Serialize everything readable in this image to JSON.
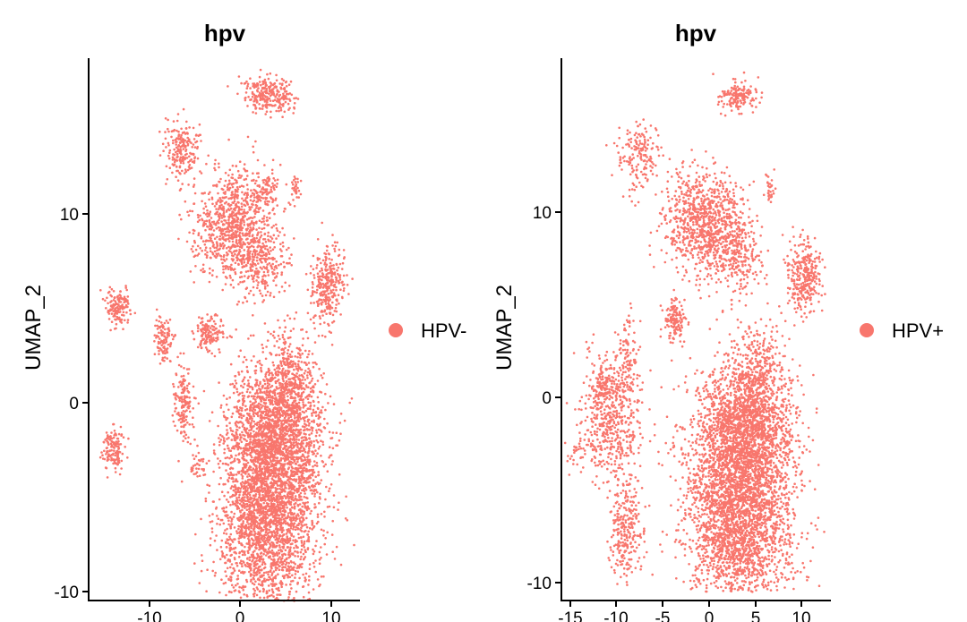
{
  "chart_data": [
    {
      "type": "scatter",
      "title": "hpv",
      "xlabel": "",
      "ylabel": "UMAP_2",
      "xlim": [
        -16.5,
        13
      ],
      "ylim": [
        -10.5,
        18
      ],
      "x_ticks": [
        "-10",
        "0",
        "10"
      ],
      "y_ticks": [
        "-10",
        "0",
        "10"
      ],
      "legend": {
        "placement": "right",
        "entries": [
          "HPV-"
        ]
      },
      "grid": false,
      "series": [
        {
          "name": "HPV-",
          "color": "#F8766D",
          "clusters": [
            {
              "x": 3,
              "y": -6,
              "sx": 2.7,
              "sy": 2.6,
              "n": 2600
            },
            {
              "x": 4,
              "y": -1.6,
              "sx": 2.6,
              "sy": 1.9,
              "n": 1800
            },
            {
              "x": 5.3,
              "y": 1.5,
              "sx": 1.3,
              "sy": 1.3,
              "n": 260
            },
            {
              "x": -0.5,
              "y": 9.5,
              "sx": 2.2,
              "sy": 1.5,
              "n": 900
            },
            {
              "x": 2.5,
              "y": 7.5,
              "sx": 1.4,
              "sy": 1.1,
              "n": 230
            },
            {
              "x": 3.2,
              "y": 16.3,
              "sx": 1.4,
              "sy": 0.5,
              "n": 260
            },
            {
              "x": 9.7,
              "y": 6.2,
              "sx": 0.9,
              "sy": 1.0,
              "n": 300
            },
            {
              "x": -6.5,
              "y": 13.5,
              "sx": 1.0,
              "sy": 0.7,
              "n": 200
            },
            {
              "x": -13.5,
              "y": 5.1,
              "sx": 0.7,
              "sy": 0.5,
              "n": 140
            },
            {
              "x": -8.4,
              "y": 3.4,
              "sx": 0.5,
              "sy": 0.6,
              "n": 110
            },
            {
              "x": -3.4,
              "y": 3.7,
              "sx": 0.7,
              "sy": 0.5,
              "n": 140
            },
            {
              "x": -6.2,
              "y": 0,
              "sx": 0.5,
              "sy": 1.1,
              "n": 160
            },
            {
              "x": -14,
              "y": -2.5,
              "sx": 0.6,
              "sy": 0.6,
              "n": 130
            },
            {
              "x": 3.1,
              "y": 11.3,
              "sx": 0.4,
              "sy": 0.4,
              "n": 50
            },
            {
              "x": 6.1,
              "y": 11.3,
              "sx": 0.3,
              "sy": 0.4,
              "n": 30
            },
            {
              "x": -4.7,
              "y": -3.4,
              "sx": 0.4,
              "sy": 0.3,
              "n": 30
            }
          ]
        }
      ]
    },
    {
      "type": "scatter",
      "title": "hpv",
      "xlabel": "",
      "ylabel": "UMAP_2",
      "xlim": [
        -16.5,
        13
      ],
      "ylim": [
        -10.5,
        18
      ],
      "x_ticks": [
        "-15",
        "-10",
        "-5",
        "0",
        "5",
        "10"
      ],
      "y_ticks": [
        "-10",
        "0",
        "10"
      ],
      "legend": {
        "placement": "right",
        "entries": [
          "HPV+"
        ]
      },
      "grid": false,
      "series": [
        {
          "name": "HPV+",
          "color": "#F8766D",
          "clusters": [
            {
              "x": 3.2,
              "y": -6.3,
              "sx": 2.8,
              "sy": 2.5,
              "n": 2800
            },
            {
              "x": 4,
              "y": -1.6,
              "sx": 2.6,
              "sy": 1.9,
              "n": 1800
            },
            {
              "x": 5.3,
              "y": 1.5,
              "sx": 1.4,
              "sy": 1.3,
              "n": 260
            },
            {
              "x": -0.5,
              "y": 9.5,
              "sx": 2.1,
              "sy": 1.4,
              "n": 900
            },
            {
              "x": 3,
              "y": 7.5,
              "sx": 1.5,
              "sy": 1.0,
              "n": 230
            },
            {
              "x": 3.2,
              "y": 16.3,
              "sx": 1.1,
              "sy": 0.4,
              "n": 160
            },
            {
              "x": 10.3,
              "y": 6.5,
              "sx": 0.9,
              "sy": 1.0,
              "n": 300
            },
            {
              "x": -7.5,
              "y": 13.2,
              "sx": 1.1,
              "sy": 0.9,
              "n": 170
            },
            {
              "x": -10.5,
              "y": -1.2,
              "sx": 1.7,
              "sy": 1.8,
              "n": 550
            },
            {
              "x": -9,
              "y": -7,
              "sx": 0.9,
              "sy": 1.4,
              "n": 260
            },
            {
              "x": -3.8,
              "y": 4.2,
              "sx": 0.6,
              "sy": 0.6,
              "n": 140
            },
            {
              "x": -8.8,
              "y": 2.2,
              "sx": 0.6,
              "sy": 1.2,
              "n": 90
            },
            {
              "x": -11.5,
              "y": 0.5,
              "sx": 0.4,
              "sy": 0.6,
              "n": 70
            },
            {
              "x": 6.5,
              "y": 11.3,
              "sx": 0.3,
              "sy": 0.4,
              "n": 30
            },
            {
              "x": -14.5,
              "y": -3,
              "sx": 0.4,
              "sy": 0.3,
              "n": 20
            }
          ]
        }
      ]
    }
  ]
}
